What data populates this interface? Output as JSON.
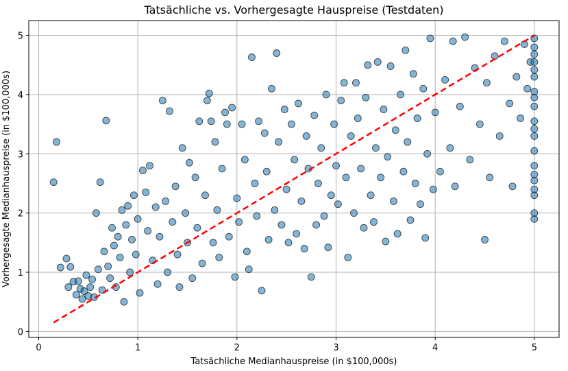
{
  "chart_data": {
    "type": "scatter",
    "title": "Tatsächliche vs. Vorhergesagte Hauspreise (Testdaten)",
    "xlabel": "Tatsächliche Medianhauspreise (in $100,000s)",
    "ylabel": "Vorhergesagte Medianhauspreise (in $100,000s)",
    "xlim": [
      -0.1,
      5.25
    ],
    "ylim": [
      -0.1,
      5.25
    ],
    "xticks": [
      "0",
      "1",
      "2",
      "3",
      "4",
      "5"
    ],
    "yticks": [
      "0",
      "1",
      "2",
      "3",
      "4",
      "5"
    ],
    "grid": true,
    "colors": {
      "points": "#1f77b4",
      "edge": "#000000",
      "reference": "#ff0000",
      "grid": "#b0b0b0"
    },
    "reference_line": {
      "x": [
        0.15,
        5.0
      ],
      "y": [
        0.15,
        5.0
      ],
      "style": "dashed"
    },
    "points": [
      [
        0.15,
        2.52
      ],
      [
        0.18,
        3.2
      ],
      [
        0.22,
        1.08
      ],
      [
        0.28,
        1.23
      ],
      [
        0.3,
        0.75
      ],
      [
        0.32,
        1.09
      ],
      [
        0.35,
        0.84
      ],
      [
        0.38,
        0.62
      ],
      [
        0.4,
        0.85
      ],
      [
        0.42,
        0.72
      ],
      [
        0.44,
        0.55
      ],
      [
        0.46,
        0.68
      ],
      [
        0.48,
        0.95
      ],
      [
        0.5,
        0.6
      ],
      [
        0.52,
        0.75
      ],
      [
        0.54,
        0.88
      ],
      [
        0.56,
        0.58
      ],
      [
        0.58,
        2.0
      ],
      [
        0.6,
        1.05
      ],
      [
        0.62,
        2.52
      ],
      [
        0.64,
        0.7
      ],
      [
        0.66,
        1.35
      ],
      [
        0.68,
        3.56
      ],
      [
        0.7,
        1.1
      ],
      [
        0.72,
        0.9
      ],
      [
        0.74,
        1.75
      ],
      [
        0.76,
        1.45
      ],
      [
        0.78,
        0.75
      ],
      [
        0.8,
        1.6
      ],
      [
        0.82,
        1.25
      ],
      [
        0.84,
        2.05
      ],
      [
        0.86,
        0.5
      ],
      [
        0.88,
        1.8
      ],
      [
        0.9,
        2.12
      ],
      [
        0.92,
        1.0
      ],
      [
        0.94,
        1.55
      ],
      [
        0.96,
        2.3
      ],
      [
        0.98,
        1.3
      ],
      [
        1.0,
        1.9
      ],
      [
        1.02,
        0.65
      ],
      [
        1.05,
        2.72
      ],
      [
        1.08,
        2.35
      ],
      [
        1.1,
        1.7
      ],
      [
        1.12,
        2.8
      ],
      [
        1.15,
        1.2
      ],
      [
        1.18,
        2.1
      ],
      [
        1.2,
        0.8
      ],
      [
        1.22,
        1.6
      ],
      [
        1.25,
        3.9
      ],
      [
        1.28,
        2.2
      ],
      [
        1.3,
        1.0
      ],
      [
        1.32,
        3.72
      ],
      [
        1.35,
        1.85
      ],
      [
        1.38,
        2.45
      ],
      [
        1.4,
        1.3
      ],
      [
        1.42,
        0.75
      ],
      [
        1.45,
        3.1
      ],
      [
        1.48,
        2.0
      ],
      [
        1.5,
        1.5
      ],
      [
        1.52,
        2.85
      ],
      [
        1.55,
        0.9
      ],
      [
        1.58,
        2.6
      ],
      [
        1.6,
        1.75
      ],
      [
        1.62,
        3.55
      ],
      [
        1.65,
        1.15
      ],
      [
        1.68,
        2.3
      ],
      [
        1.7,
        3.9
      ],
      [
        1.72,
        4.02
      ],
      [
        1.74,
        3.55
      ],
      [
        1.76,
        1.5
      ],
      [
        1.78,
        3.2
      ],
      [
        1.8,
        2.05
      ],
      [
        1.82,
        1.25
      ],
      [
        1.85,
        2.75
      ],
      [
        1.88,
        3.7
      ],
      [
        1.9,
        3.5
      ],
      [
        1.92,
        1.6
      ],
      [
        1.95,
        3.78
      ],
      [
        1.98,
        0.92
      ],
      [
        2.0,
        2.25
      ],
      [
        2.02,
        1.85
      ],
      [
        2.05,
        3.5
      ],
      [
        2.08,
        2.9
      ],
      [
        2.1,
        1.35
      ],
      [
        2.12,
        1.05
      ],
      [
        2.15,
        4.63
      ],
      [
        2.18,
        2.5
      ],
      [
        2.2,
        1.95
      ],
      [
        2.22,
        3.55
      ],
      [
        2.25,
        0.69
      ],
      [
        2.28,
        3.35
      ],
      [
        2.3,
        2.7
      ],
      [
        2.32,
        1.55
      ],
      [
        2.35,
        4.1
      ],
      [
        2.38,
        2.05
      ],
      [
        2.4,
        4.7
      ],
      [
        2.42,
        3.2
      ],
      [
        2.45,
        1.8
      ],
      [
        2.48,
        3.75
      ],
      [
        2.5,
        2.4
      ],
      [
        2.52,
        1.5
      ],
      [
        2.55,
        3.5
      ],
      [
        2.58,
        2.9
      ],
      [
        2.6,
        1.65
      ],
      [
        2.62,
        3.85
      ],
      [
        2.65,
        2.2
      ],
      [
        2.68,
        1.4
      ],
      [
        2.7,
        3.3
      ],
      [
        2.72,
        2.75
      ],
      [
        2.75,
        0.92
      ],
      [
        2.78,
        3.65
      ],
      [
        2.8,
        1.8
      ],
      [
        2.82,
        2.5
      ],
      [
        2.85,
        3.1
      ],
      [
        2.88,
        1.95
      ],
      [
        2.9,
        4.0
      ],
      [
        2.92,
        1.42
      ],
      [
        2.95,
        2.3
      ],
      [
        2.98,
        3.5
      ],
      [
        3.0,
        2.8
      ],
      [
        3.02,
        2.15
      ],
      [
        3.05,
        3.9
      ],
      [
        3.08,
        4.2
      ],
      [
        3.1,
        2.6
      ],
      [
        3.12,
        1.25
      ],
      [
        3.15,
        3.3
      ],
      [
        3.18,
        2.0
      ],
      [
        3.2,
        4.2
      ],
      [
        3.22,
        3.6
      ],
      [
        3.25,
        2.75
      ],
      [
        3.28,
        1.75
      ],
      [
        3.3,
        3.95
      ],
      [
        3.32,
        4.5
      ],
      [
        3.35,
        2.3
      ],
      [
        3.38,
        1.85
      ],
      [
        3.4,
        3.1
      ],
      [
        3.42,
        4.55
      ],
      [
        3.45,
        2.6
      ],
      [
        3.48,
        3.75
      ],
      [
        3.5,
        1.52
      ],
      [
        3.52,
        2.95
      ],
      [
        3.55,
        4.48
      ],
      [
        3.58,
        2.2
      ],
      [
        3.6,
        3.4
      ],
      [
        3.62,
        1.65
      ],
      [
        3.65,
        4.0
      ],
      [
        3.68,
        2.7
      ],
      [
        3.7,
        4.75
      ],
      [
        3.72,
        3.2
      ],
      [
        3.75,
        1.88
      ],
      [
        3.78,
        4.35
      ],
      [
        3.8,
        2.5
      ],
      [
        3.82,
        3.6
      ],
      [
        3.85,
        2.15
      ],
      [
        3.88,
        4.1
      ],
      [
        3.9,
        1.58
      ],
      [
        3.92,
        3.0
      ],
      [
        3.95,
        4.95
      ],
      [
        3.98,
        2.4
      ],
      [
        4.0,
        3.7
      ],
      [
        4.05,
        2.7
      ],
      [
        4.1,
        4.25
      ],
      [
        4.15,
        3.1
      ],
      [
        4.18,
        4.9
      ],
      [
        4.2,
        2.45
      ],
      [
        4.25,
        3.8
      ],
      [
        4.3,
        4.97
      ],
      [
        4.35,
        2.9
      ],
      [
        4.4,
        4.45
      ],
      [
        4.45,
        3.5
      ],
      [
        4.5,
        1.55
      ],
      [
        4.52,
        4.2
      ],
      [
        4.55,
        2.6
      ],
      [
        4.6,
        4.65
      ],
      [
        4.65,
        3.3
      ],
      [
        4.7,
        4.9
      ],
      [
        4.75,
        3.85
      ],
      [
        4.78,
        2.45
      ],
      [
        4.82,
        4.3
      ],
      [
        4.86,
        3.6
      ],
      [
        4.9,
        4.85
      ],
      [
        4.93,
        4.1
      ],
      [
        4.96,
        4.55
      ],
      [
        5.0,
        1.9
      ],
      [
        5.0,
        2.0
      ],
      [
        5.0,
        2.3
      ],
      [
        5.0,
        2.55
      ],
      [
        5.0,
        2.8
      ],
      [
        5.0,
        3.05
      ],
      [
        5.0,
        3.3
      ],
      [
        5.0,
        3.55
      ],
      [
        5.0,
        3.8
      ],
      [
        5.0,
        4.05
      ],
      [
        5.0,
        4.3
      ],
      [
        5.0,
        4.55
      ],
      [
        5.0,
        4.8
      ],
      [
        5.0,
        4.95
      ],
      [
        5.0,
        4.68
      ],
      [
        5.0,
        4.42
      ],
      [
        5.0,
        3.95
      ],
      [
        5.0,
        3.42
      ],
      [
        5.0,
        2.65
      ],
      [
        5.0,
        2.4
      ]
    ]
  }
}
